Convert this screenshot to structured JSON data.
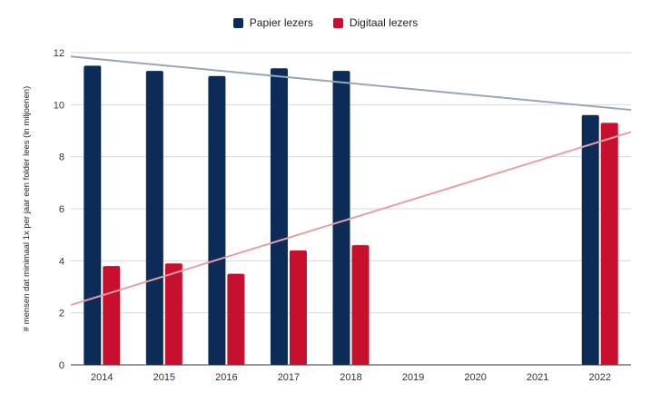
{
  "chart_data": {
    "type": "bar",
    "categories": [
      "2014",
      "2015",
      "2016",
      "2017",
      "2018",
      "2019",
      "2020",
      "2021",
      "2022"
    ],
    "series": [
      {
        "name": "Papier lezers",
        "color": "#0d2b57",
        "values": [
          11.5,
          11.3,
          11.1,
          11.4,
          11.3,
          null,
          null,
          null,
          9.6
        ]
      },
      {
        "name": "Digitaal lezers",
        "color": "#c8102e",
        "values": [
          3.8,
          3.9,
          3.5,
          4.4,
          4.6,
          null,
          null,
          null,
          9.3
        ]
      }
    ],
    "trendlines": [
      {
        "series": "Papier lezers",
        "color": "#9aa6b8",
        "start": 11.85,
        "end": 9.8
      },
      {
        "series": "Digitaal lezers",
        "color": "#e8a0a8",
        "start": 2.3,
        "end": 8.95
      }
    ],
    "ylabel": "# mensen dat minimaal 1x per jaar een folder lees (in miljoenen)",
    "xlabel": "",
    "ylim": [
      0,
      12
    ],
    "yticks": [
      0,
      2,
      4,
      6,
      8,
      10,
      12
    ],
    "grid": true,
    "legend_position": "top"
  }
}
